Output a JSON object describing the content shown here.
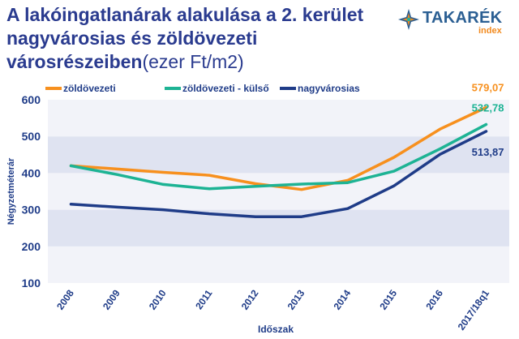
{
  "header": {
    "title": "A lakóingatlanárak alakulása a 2. kerület nagyvárosias és zöldövezeti városrészeiben",
    "title_unit": "(ezer Ft/m2)"
  },
  "logo": {
    "brand": "TAKARÉK",
    "sub": "index",
    "mark_icon": "takarek-star-icon",
    "colors": {
      "blue": "#2b5f93",
      "orange": "#f28a1e",
      "teal": "#1fb39a"
    }
  },
  "chart_data": {
    "type": "line",
    "xlabel": "Időszak",
    "ylabel": "Négyzetméterár",
    "ylim": [
      100,
      600
    ],
    "yticks": [
      100,
      200,
      300,
      400,
      500,
      600
    ],
    "categories": [
      "2008",
      "2009",
      "2010",
      "2011",
      "2012",
      "2013",
      "2014",
      "2015",
      "2016",
      "2017/18q1"
    ],
    "grid": "alternating horizontal bands",
    "legend_position": "top",
    "series": [
      {
        "name": "zöldövezeti",
        "color": "#f7901e",
        "values": [
          420,
          411,
          402,
          394,
          371,
          355,
          380,
          443,
          520,
          579.07
        ],
        "end_label": "579,07"
      },
      {
        "name": "zöldövezeti - külső",
        "color": "#1db394",
        "values": [
          420,
          396,
          369,
          357,
          364,
          370,
          374,
          405,
          466,
          532.78
        ],
        "end_label": "532,78"
      },
      {
        "name": "nagyvárosias",
        "color": "#1f3c88",
        "values": [
          315,
          307,
          300,
          289,
          281,
          281,
          303,
          365,
          451,
          513.87
        ],
        "end_label": "513,87"
      }
    ]
  }
}
